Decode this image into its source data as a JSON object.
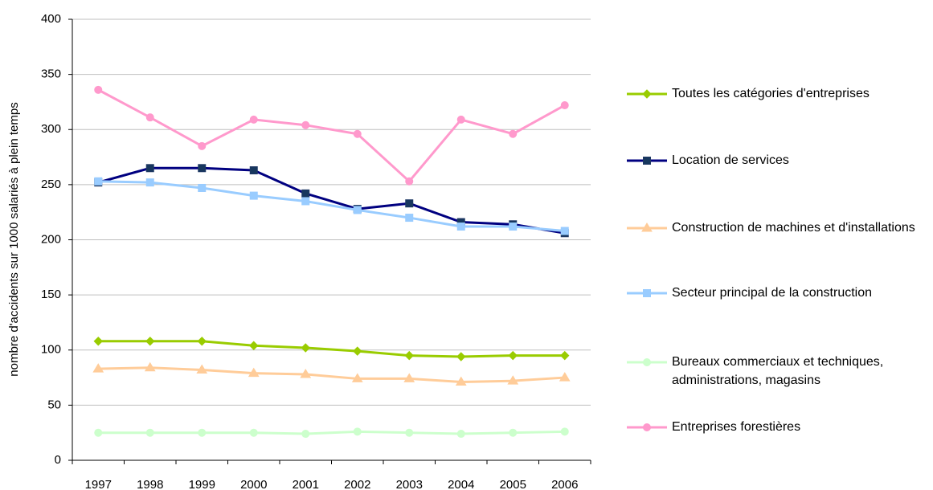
{
  "chart_data": {
    "type": "line",
    "y_label": "nombre d'accidents sur 1000 salariés à plein temps",
    "categories": [
      "1997",
      "1998",
      "1999",
      "2000",
      "2001",
      "2002",
      "2003",
      "2004",
      "2005",
      "2006"
    ],
    "ylim": [
      0,
      400
    ],
    "yticks": [
      0,
      50,
      100,
      150,
      200,
      250,
      300,
      350,
      400
    ],
    "grid": true,
    "series": [
      {
        "name": "Toutes les catégories d'entreprises",
        "color": "#99cc00",
        "marker": "diamond",
        "values": [
          108,
          108,
          108,
          104,
          102,
          99,
          95,
          94,
          95,
          95
        ]
      },
      {
        "name": "Location de services",
        "color": "#000080",
        "marker": "square",
        "values": [
          252,
          265,
          265,
          263,
          242,
          228,
          233,
          216,
          214,
          206
        ]
      },
      {
        "name": "Construction de machines et d'installations",
        "color": "#ffcc99",
        "marker": "triangle",
        "values": [
          83,
          84,
          82,
          79,
          78,
          74,
          74,
          71,
          72,
          75
        ]
      },
      {
        "name": "Secteur principal de la construction",
        "color": "#99ccff",
        "marker": "square",
        "values": [
          253,
          252,
          247,
          240,
          235,
          227,
          220,
          212,
          212,
          208
        ]
      },
      {
        "name": "Bureaux commerciaux et techniques, administrations, magasins",
        "color": "#ccffcc",
        "marker": "circle",
        "values": [
          25,
          25,
          25,
          25,
          24,
          26,
          25,
          24,
          25,
          26
        ]
      },
      {
        "name": "Entreprises forestières",
        "color": "#ff99cc",
        "marker": "circle",
        "values": [
          336,
          311,
          285,
          309,
          304,
          296,
          253,
          309,
          296,
          322
        ]
      }
    ]
  }
}
